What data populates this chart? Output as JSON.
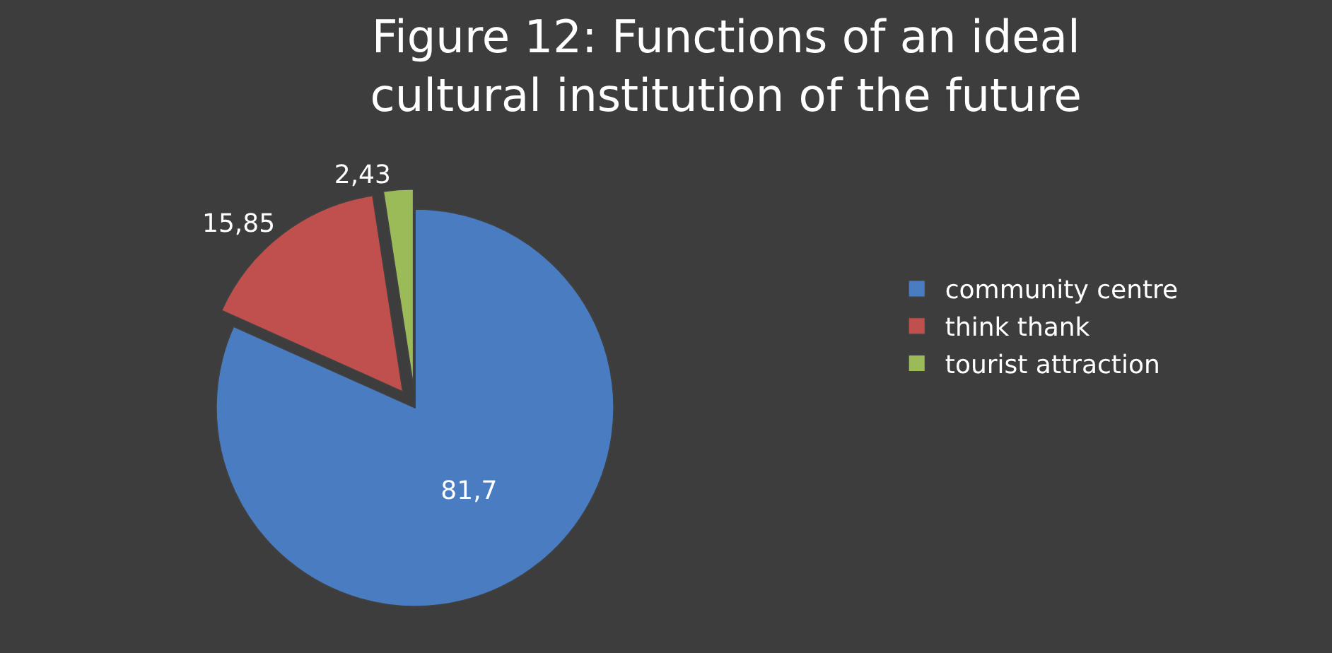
{
  "chart_data": {
    "type": "pie",
    "title": "Figure 12: Functions of an ideal\ncultural institution of the future",
    "categories": [
      "community centre",
      "think thank",
      "tourist attraction"
    ],
    "values": [
      81.7,
      15.85,
      2.43
    ],
    "value_labels": [
      "81,7",
      "15,85",
      "2,43"
    ],
    "colors": [
      "#4a7cc2",
      "#c0504d",
      "#9bbb59"
    ],
    "legend": "right"
  }
}
